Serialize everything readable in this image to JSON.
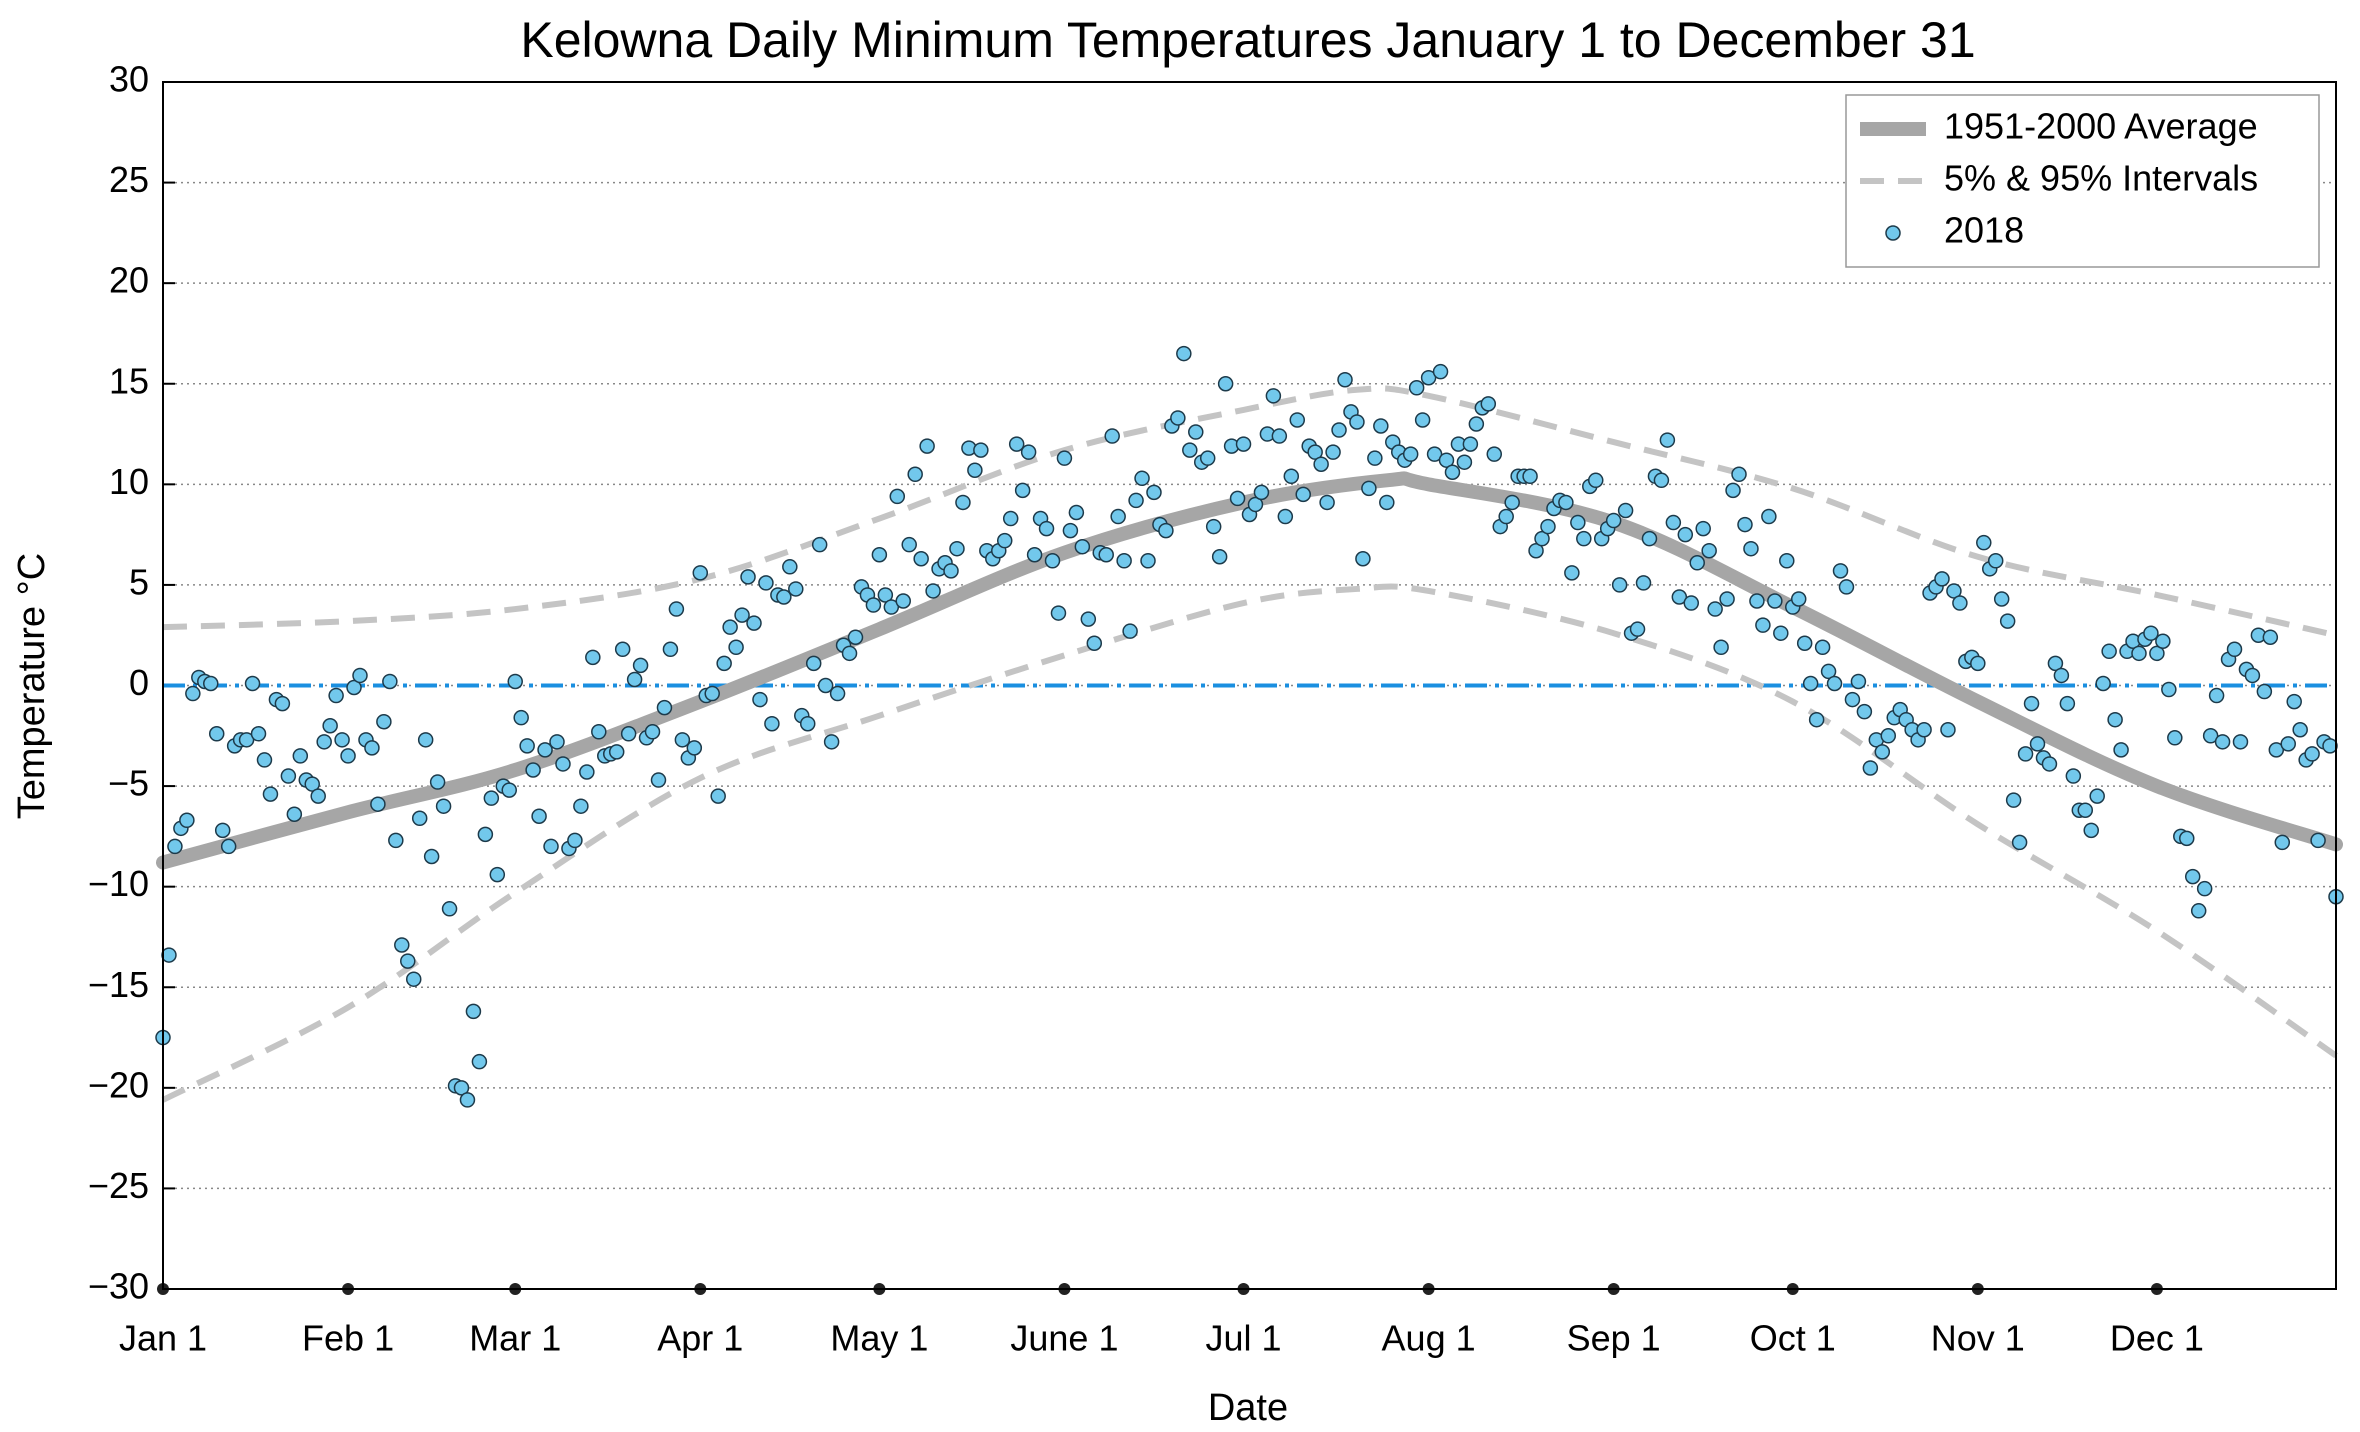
{
  "chart_data": {
    "type": "scatter",
    "title": "Kelowna Daily Minimum Temperatures January 1 to December 31",
    "xlabel": "Date",
    "ylabel": "Temperature °C",
    "xlim": [
      0,
      364
    ],
    "ylim": [
      -30,
      30
    ],
    "xticks": [
      {
        "value": 0,
        "label": "Jan 1"
      },
      {
        "value": 31,
        "label": "Feb 1"
      },
      {
        "value": 59,
        "label": "Mar 1"
      },
      {
        "value": 90,
        "label": "Apr 1"
      },
      {
        "value": 120,
        "label": "May 1"
      },
      {
        "value": 151,
        "label": "June 1"
      },
      {
        "value": 181,
        "label": "Jul 1"
      },
      {
        "value": 212,
        "label": "Aug 1"
      },
      {
        "value": 243,
        "label": "Sep 1"
      },
      {
        "value": 273,
        "label": "Oct 1"
      },
      {
        "value": 304,
        "label": "Nov 1"
      },
      {
        "value": 334,
        "label": "Dec 1"
      }
    ],
    "yticks": [
      {
        "value": -30,
        "label": "−30"
      },
      {
        "value": -25,
        "label": "−25"
      },
      {
        "value": -20,
        "label": "−20"
      },
      {
        "value": -15,
        "label": "−15"
      },
      {
        "value": -10,
        "label": "−10"
      },
      {
        "value": -5,
        "label": "−5"
      },
      0,
      5,
      10,
      15,
      20,
      25,
      30
    ],
    "grid": true,
    "legend": "upper right",
    "hline": {
      "value": 0,
      "color": "#1a8fe0"
    },
    "series": [
      {
        "name": "1951-2000 Average",
        "color": "#a6a6a6",
        "kind": "line",
        "x": [
          0,
          31,
          59,
          90,
          120,
          151,
          181,
          205,
          212,
          243,
          273,
          304,
          334,
          364
        ],
        "values": [
          -8.8,
          -6.3,
          -4.2,
          -0.8,
          2.8,
          6.6,
          9.1,
          10.2,
          10,
          8.1,
          3.9,
          -0.8,
          -5,
          -7.9
        ]
      },
      {
        "name": "5% & 95% Intervals",
        "color": "#c4c4c4",
        "kind": "band",
        "x": [
          0,
          31,
          59,
          90,
          120,
          151,
          181,
          200,
          212,
          243,
          273,
          304,
          334,
          364
        ],
        "upper": [
          2.9,
          3.2,
          3.8,
          5.3,
          8.3,
          11.7,
          13.7,
          14.7,
          14.4,
          12.1,
          9.8,
          6.4,
          4.5,
          2.5
        ],
        "lower": [
          -20.6,
          -16,
          -10.3,
          -4.6,
          -1.5,
          1.5,
          4.1,
          4.8,
          4.7,
          2.6,
          -0.8,
          -6.9,
          -12.2,
          -18.4
        ]
      },
      {
        "name": "2018",
        "color": "#72c8ec",
        "kind": "points",
        "x": [
          0,
          1,
          2,
          3,
          4,
          5,
          6,
          7,
          8,
          9,
          10,
          11,
          12,
          13,
          14,
          15,
          16,
          17,
          18,
          19,
          20,
          21,
          22,
          23,
          24,
          25,
          26,
          27,
          28,
          29,
          30,
          31,
          32,
          33,
          34,
          35,
          36,
          37,
          38,
          39,
          40,
          41,
          42,
          43,
          44,
          45,
          46,
          47,
          48,
          49,
          50,
          51,
          52,
          53,
          54,
          55,
          56,
          57,
          58,
          59,
          60,
          61,
          62,
          63,
          64,
          65,
          66,
          67,
          68,
          69,
          70,
          71,
          72,
          73,
          74,
          75,
          76,
          77,
          78,
          79,
          80,
          81,
          82,
          83,
          84,
          85,
          86,
          87,
          88,
          89,
          90,
          91,
          92,
          93,
          94,
          95,
          96,
          97,
          98,
          99,
          100,
          101,
          102,
          103,
          104,
          105,
          106,
          107,
          108,
          109,
          110,
          111,
          112,
          113,
          114,
          115,
          116,
          117,
          118,
          119,
          120,
          121,
          122,
          123,
          124,
          125,
          126,
          127,
          128,
          129,
          130,
          131,
          132,
          133,
          134,
          135,
          136,
          137,
          138,
          139,
          140,
          141,
          142,
          143,
          144,
          145,
          146,
          147,
          148,
          149,
          150,
          151,
          152,
          153,
          154,
          155,
          156,
          157,
          158,
          159,
          160,
          161,
          162,
          163,
          164,
          165,
          166,
          167,
          168,
          169,
          170,
          171,
          172,
          173,
          174,
          175,
          176,
          177,
          178,
          179,
          180,
          181,
          182,
          183,
          184,
          185,
          186,
          187,
          188,
          189,
          190,
          191,
          192,
          193,
          194,
          195,
          196,
          197,
          198,
          199,
          200,
          201,
          202,
          203,
          204,
          205,
          206,
          207,
          208,
          209,
          210,
          211,
          212,
          213,
          214,
          215,
          216,
          217,
          218,
          219,
          220,
          221,
          222,
          223,
          224,
          225,
          226,
          227,
          228,
          229,
          230,
          231,
          232,
          233,
          234,
          235,
          236,
          237,
          238,
          239,
          240,
          241,
          242,
          243,
          244,
          245,
          246,
          247,
          248,
          249,
          250,
          251,
          252,
          253,
          254,
          255,
          256,
          257,
          258,
          259,
          260,
          261,
          262,
          263,
          264,
          265,
          266,
          267,
          268,
          269,
          270,
          271,
          272,
          273,
          274,
          275,
          276,
          277,
          278,
          279,
          280,
          281,
          282,
          283,
          284,
          285,
          286,
          287,
          288,
          289,
          290,
          291,
          292,
          293,
          294,
          295,
          296,
          297,
          298,
          299,
          300,
          301,
          302,
          303,
          304,
          305,
          306,
          307,
          308,
          309,
          310,
          311,
          312,
          313,
          314,
          315,
          316,
          317,
          318,
          319,
          320,
          321,
          322,
          323,
          324,
          325,
          326,
          327,
          328,
          329,
          330,
          331,
          332,
          333,
          334,
          335,
          336,
          337,
          338,
          339,
          340,
          341,
          342,
          343,
          344,
          345,
          346,
          347,
          348,
          349,
          350,
          351,
          352,
          353,
          354,
          355,
          356,
          357,
          358,
          359,
          360,
          361,
          362,
          363,
          364
        ],
        "values": [
          -17.5,
          -13.4,
          -8,
          -7.1,
          -6.7,
          -0.4,
          0.4,
          0.2,
          0.1,
          -2.4,
          -7.2,
          -8,
          -3,
          -2.7,
          -2.7,
          0.1,
          -2.4,
          -3.7,
          -5.4,
          -0.7,
          -0.9,
          -4.5,
          -6.4,
          -3.5,
          -4.7,
          -4.9,
          -5.5,
          -2.8,
          -2,
          -0.5,
          -2.7,
          -3.5,
          -0.1,
          0.5,
          -2.7,
          -3.1,
          -5.9,
          -1.8,
          0.2,
          -7.7,
          -12.9,
          -13.7,
          -14.6,
          -6.6,
          -2.7,
          -8.5,
          -4.8,
          -6,
          -11.1,
          -19.9,
          -20,
          -20.6,
          -16.2,
          -18.7,
          -7.4,
          -5.6,
          -9.4,
          -5,
          -5.2,
          0.2,
          -1.6,
          -3,
          -4.2,
          -6.5,
          -3.2,
          -8,
          -2.8,
          -3.9,
          -8.1,
          -7.7,
          -6,
          -4.3,
          1.4,
          -2.3,
          -3.5,
          -3.4,
          -3.3,
          1.8,
          -2.4,
          0.3,
          1,
          -2.6,
          -2.3,
          -4.7,
          -1.1,
          1.8,
          3.8,
          -2.7,
          -3.6,
          -3.1,
          5.6,
          -0.5,
          -0.4,
          -5.5,
          1.1,
          2.9,
          1.9,
          3.5,
          5.4,
          3.1,
          -0.7,
          5.1,
          -1.9,
          4.5,
          4.4,
          5.9,
          4.8,
          -1.5,
          -1.9,
          1.1,
          7,
          0,
          -2.8,
          -0.4,
          2,
          1.6,
          2.4,
          4.9,
          4.5,
          4,
          6.5,
          4.5,
          3.9,
          9.4,
          4.2,
          7,
          10.5,
          6.3,
          11.9,
          4.7,
          5.8,
          6.1,
          5.7,
          6.8,
          9.1,
          11.8,
          10.7,
          11.7,
          6.7,
          6.3,
          6.7,
          7.2,
          8.3,
          12,
          9.7,
          11.6,
          6.5,
          8.3,
          7.8,
          6.2,
          3.6,
          11.3,
          7.7,
          8.6,
          6.9,
          3.3,
          2.1,
          6.6,
          6.5,
          12.4,
          8.4,
          6.2,
          2.7,
          9.2,
          10.3,
          6.2,
          9.6,
          8,
          7.7,
          12.9,
          13.3,
          16.5,
          11.7,
          12.6,
          11.1,
          11.3,
          7.9,
          6.4,
          15,
          11.9,
          9.3,
          12,
          8.5,
          9,
          9.6,
          12.5,
          14.4,
          12.4,
          8.4,
          10.4,
          13.2,
          9.5,
          11.9,
          11.6,
          11,
          9.1,
          11.6,
          12.7,
          15.2,
          13.6,
          13.1,
          6.3,
          9.8,
          11.3,
          12.9,
          9.1,
          12.1,
          11.6,
          11.2,
          11.5,
          14.8,
          13.2,
          15.3,
          11.5,
          15.6,
          11.2,
          10.6,
          12,
          11.1,
          12,
          13,
          13.8,
          14,
          11.5,
          7.9,
          8.4,
          9.1,
          10.4,
          10.4,
          10.4,
          6.7,
          7.3,
          7.9,
          8.8,
          9.2,
          9.1,
          5.6,
          8.1,
          7.3,
          9.9,
          10.2,
          7.3,
          7.8,
          8.2,
          5,
          8.7,
          2.6,
          2.8,
          5.1,
          7.3,
          10.4,
          10.2,
          12.2,
          8.1,
          4.4,
          7.5,
          4.1,
          6.1,
          7.8,
          6.7,
          3.8,
          1.9,
          4.3,
          9.7,
          10.5,
          8,
          6.8,
          4.2,
          3,
          8.4,
          4.2,
          2.6,
          6.2,
          3.9,
          4.3,
          2.1,
          0.1,
          -1.7,
          1.9,
          0.7,
          0.1,
          5.7,
          4.9,
          -0.7,
          0.2,
          -1.3,
          -4.1,
          -2.7,
          -3.3,
          -2.5,
          -1.6,
          -1.2,
          -1.7,
          -2.2,
          -2.7,
          -2.2,
          4.6,
          4.9,
          5.3,
          -2.2,
          4.7,
          4.1,
          1.2,
          1.4,
          1.1,
          7.1,
          5.8,
          6.2,
          4.3,
          3.2,
          -5.7,
          -7.8,
          -3.4,
          -0.9,
          -2.9,
          -3.6,
          -3.9,
          1.1,
          0.5,
          -0.9,
          -4.5,
          -6.2,
          -6.2,
          -7.2,
          -5.5,
          0.1,
          1.7,
          -1.7,
          -3.2,
          1.7,
          2.2,
          1.6,
          2.3,
          2.6,
          1.6,
          2.2,
          -0.2,
          -2.6,
          -7.5,
          -7.6,
          -9.5,
          -11.2,
          -10.1,
          -2.5,
          -0.5,
          -2.8,
          1.3,
          1.8,
          -2.8,
          0.8,
          0.5,
          2.5,
          -0.3,
          2.4,
          -3.2,
          -7.8,
          -2.9,
          -0.8,
          -2.2,
          -3.7,
          -3.4,
          -7.7,
          -2.8,
          -3,
          -10.5
        ]
      }
    ]
  }
}
